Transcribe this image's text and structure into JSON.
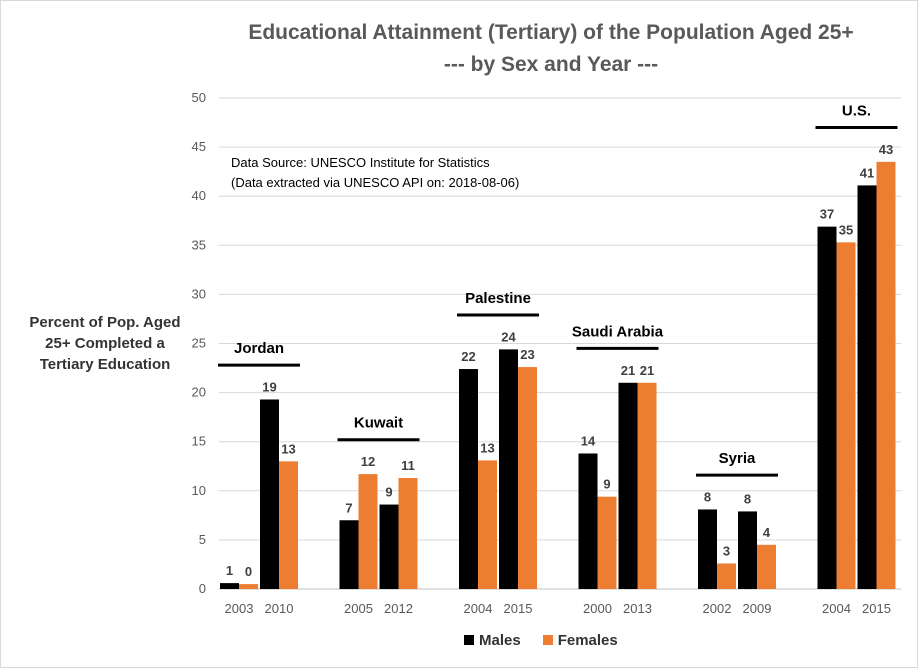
{
  "title_line1": "Educational Attainment (Tertiary) of the Population Aged 25+",
  "title_line2": "--- by Sex and Year ---",
  "ylabel_lines": [
    "Percent of Pop. Aged",
    "25+ Completed a",
    "Tertiary Education"
  ],
  "source_lines": [
    "Data Source: UNESCO Institute for Statistics",
    "(Data extracted via UNESCO API on: 2018-08-06)"
  ],
  "legend": [
    {
      "label": "Males",
      "color": "#000000"
    },
    {
      "label": "Females",
      "color": "#ed7d31"
    }
  ],
  "chart_data": {
    "type": "bar",
    "title": "Educational Attainment (Tertiary) of the Population Aged 25+ --- by Sex and Year ---",
    "ylabel": "Percent of Pop. Aged 25+ Completed a Tertiary Education",
    "ylim": [
      0,
      50
    ],
    "yticks": [
      0,
      5,
      10,
      15,
      20,
      25,
      30,
      35,
      40,
      45,
      50
    ],
    "grid": true,
    "legend_position": "bottom",
    "groups": [
      {
        "country": "Jordan",
        "years": [
          {
            "year": "2003",
            "males": 0.6,
            "females": 0.5,
            "males_label": "1",
            "females_label": "0"
          },
          {
            "year": "2010",
            "males": 19.3,
            "females": 13.0,
            "males_label": "19",
            "females_label": "13"
          }
        ]
      },
      {
        "country": "Kuwait",
        "years": [
          {
            "year": "2005",
            "males": 7.0,
            "females": 11.7,
            "males_label": "7",
            "females_label": "12"
          },
          {
            "year": "2012",
            "males": 8.6,
            "females": 11.3,
            "males_label": "9",
            "females_label": "11"
          }
        ]
      },
      {
        "country": "Palestine",
        "years": [
          {
            "year": "2004",
            "males": 22.4,
            "females": 13.1,
            "males_label": "22",
            "females_label": "13"
          },
          {
            "year": "2015",
            "males": 24.4,
            "females": 22.6,
            "males_label": "24",
            "females_label": "23"
          }
        ]
      },
      {
        "country": "Saudi Arabia",
        "years": [
          {
            "year": "2000",
            "males": 13.8,
            "females": 9.4,
            "males_label": "14",
            "females_label": "9"
          },
          {
            "year": "2013",
            "males": 21.0,
            "females": 21.0,
            "males_label": "21",
            "females_label": "21"
          }
        ]
      },
      {
        "country": "Syria",
        "years": [
          {
            "year": "2002",
            "males": 8.1,
            "females": 2.6,
            "males_label": "8",
            "females_label": "3"
          },
          {
            "year": "2009",
            "males": 7.9,
            "females": 4.5,
            "males_label": "8",
            "females_label": "4"
          }
        ]
      },
      {
        "country": "U.S.",
        "years": [
          {
            "year": "2004",
            "males": 36.9,
            "females": 35.3,
            "males_label": "37",
            "females_label": "35"
          },
          {
            "year": "2015",
            "males": 41.1,
            "females": 43.5,
            "males_label": "41",
            "females_label": "43"
          }
        ]
      }
    ]
  }
}
